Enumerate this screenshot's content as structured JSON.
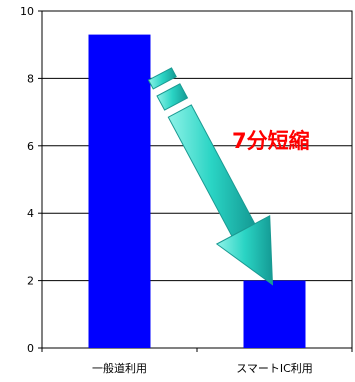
{
  "chart_data": {
    "type": "bar",
    "categories": [
      "一般道利用",
      "スマートIC利用"
    ],
    "values": [
      9.3,
      2.0
    ],
    "ylim": [
      0,
      10
    ],
    "yticks": [
      0,
      2,
      4,
      6,
      8,
      10
    ],
    "grid": true,
    "annotation": "7分短縮",
    "colors": {
      "bar": "#0000ff",
      "arrow": "#2ad4c4",
      "annotation": "#ff0000"
    }
  }
}
